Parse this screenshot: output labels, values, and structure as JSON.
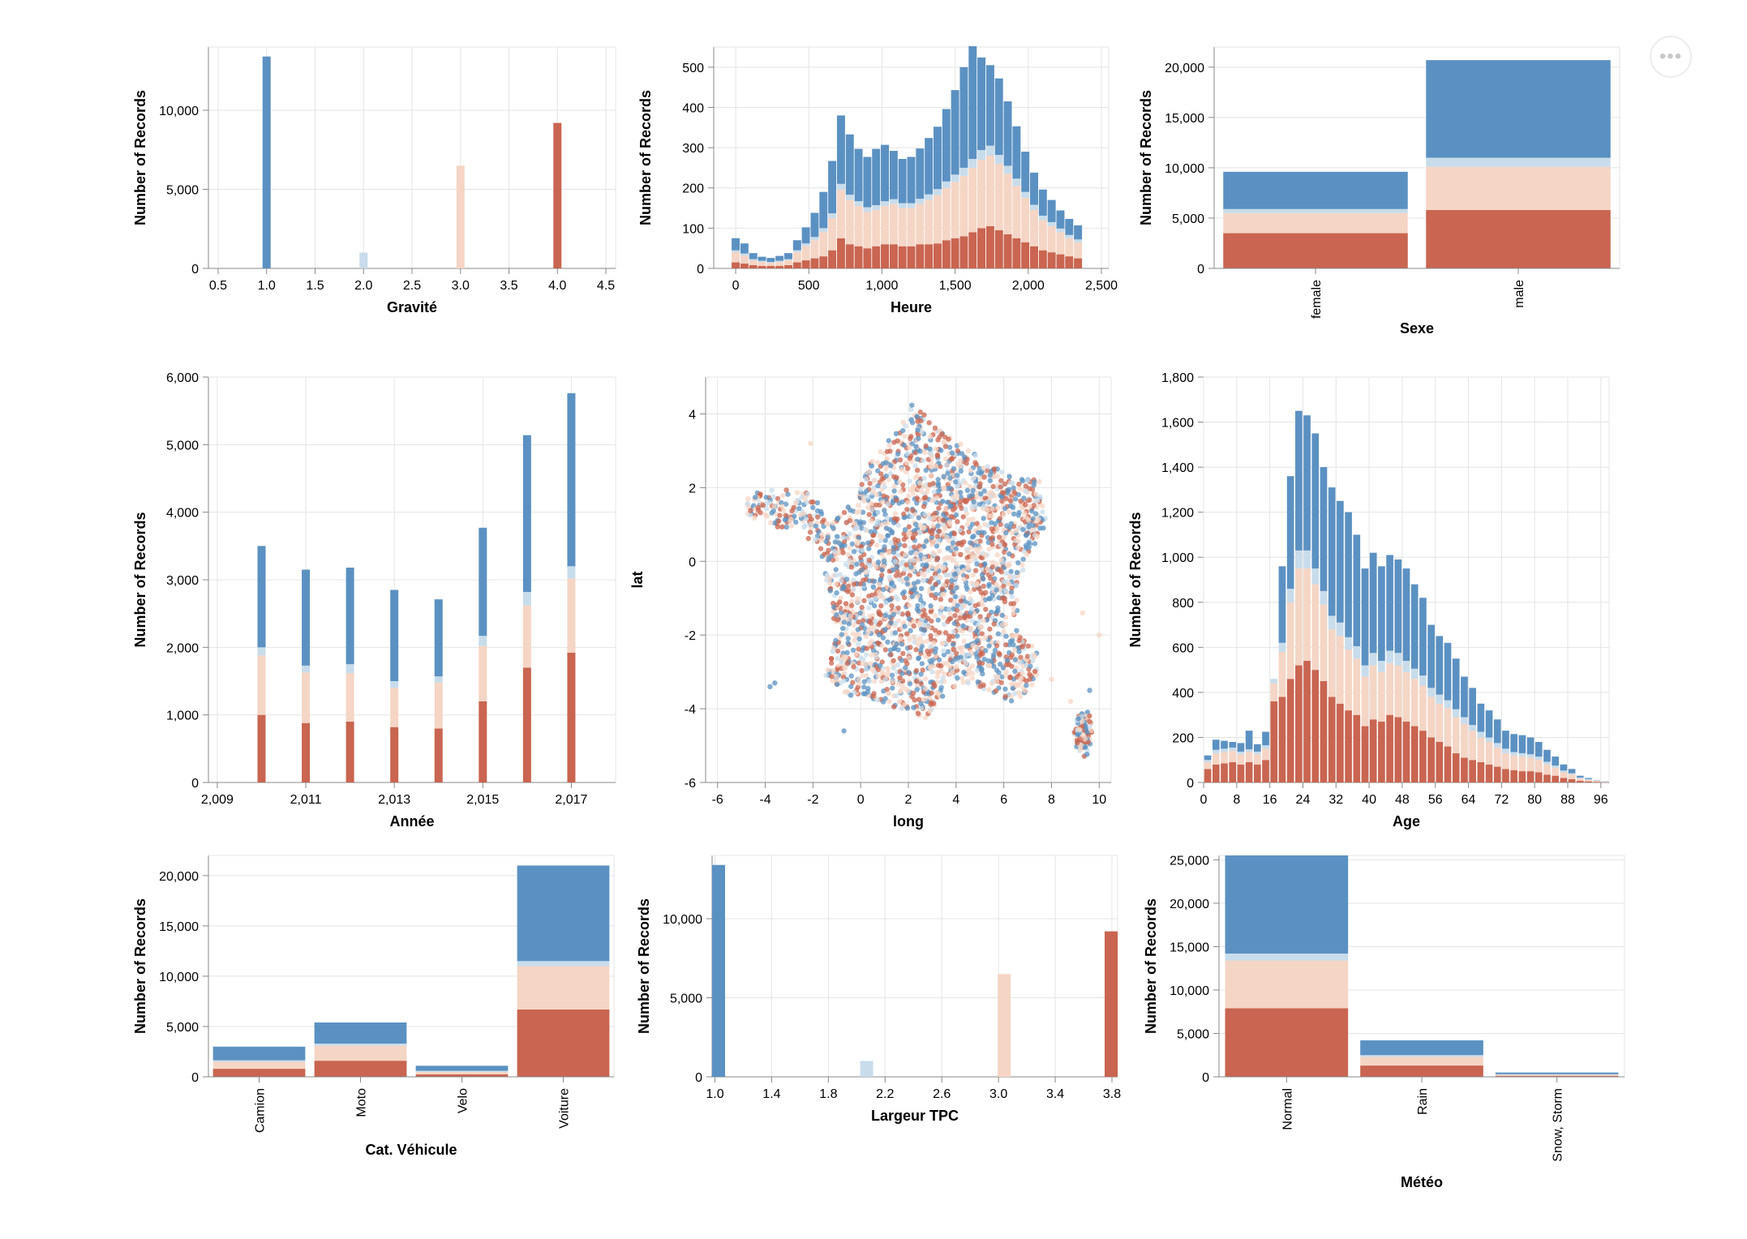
{
  "more_menu_label": "•••",
  "colors": {
    "g1": "#5b91c2",
    "g2": "#c8dceb",
    "g3": "#f5d5c5",
    "g4": "#c96550",
    "grid": "#e4e4e4",
    "axis": "#888888"
  },
  "chart_data": [
    {
      "id": "gravite",
      "type": "bar",
      "xlabel": "Gravité",
      "ylabel": "Number of Records",
      "xlim": [
        0.4,
        4.6
      ],
      "ylim": [
        0,
        14000
      ],
      "xticks": [
        "0.5",
        "1.0",
        "1.5",
        "2.0",
        "2.5",
        "3.0",
        "3.5",
        "4.0",
        "4.5"
      ],
      "yticks": [
        "0",
        "5,000",
        "10,000"
      ],
      "bars": [
        {
          "x": 1,
          "value": 13400,
          "group": 1
        },
        {
          "x": 2,
          "value": 1000,
          "group": 2
        },
        {
          "x": 3,
          "value": 6500,
          "group": 3
        },
        {
          "x": 4,
          "value": 9200,
          "group": 4
        }
      ]
    },
    {
      "id": "heure",
      "type": "bar",
      "stacked": true,
      "xlabel": "Heure",
      "ylabel": "Number of Records",
      "xlim": [
        -150,
        2550
      ],
      "ylim": [
        0,
        550
      ],
      "xticks": [
        "0",
        "500",
        "1,000",
        "1,500",
        "2,000",
        "2,500"
      ],
      "yticks": [
        "0",
        "100",
        "200",
        "300",
        "400",
        "500"
      ],
      "x": [
        0,
        60,
        120,
        180,
        240,
        300,
        360,
        420,
        480,
        540,
        600,
        660,
        720,
        780,
        840,
        900,
        960,
        1020,
        1080,
        1140,
        1200,
        1260,
        1320,
        1380,
        1440,
        1500,
        1560,
        1620,
        1680,
        1740,
        1800,
        1860,
        1920,
        1980,
        2040,
        2100,
        2160,
        2220,
        2280,
        2340
      ],
      "series": [
        {
          "group": 4,
          "values": [
            15,
            12,
            8,
            6,
            6,
            6,
            8,
            15,
            20,
            25,
            30,
            45,
            75,
            60,
            55,
            50,
            55,
            60,
            60,
            55,
            55,
            60,
            60,
            62,
            70,
            75,
            80,
            90,
            100,
            105,
            95,
            85,
            75,
            65,
            55,
            45,
            40,
            35,
            30,
            25
          ]
        },
        {
          "group": 3,
          "values": [
            25,
            20,
            12,
            10,
            8,
            10,
            12,
            25,
            35,
            45,
            60,
            80,
            120,
            110,
            100,
            90,
            90,
            95,
            100,
            95,
            95,
            100,
            110,
            120,
            130,
            140,
            150,
            160,
            170,
            175,
            165,
            150,
            130,
            110,
            90,
            75,
            65,
            55,
            45,
            40
          ]
        },
        {
          "group": 2,
          "values": [
            5,
            5,
            3,
            3,
            2,
            3,
            3,
            5,
            7,
            8,
            10,
            12,
            15,
            13,
            12,
            12,
            12,
            12,
            12,
            12,
            12,
            13,
            14,
            15,
            16,
            18,
            20,
            22,
            24,
            25,
            22,
            20,
            18,
            15,
            13,
            11,
            10,
            9,
            8,
            7
          ]
        },
        {
          "group": 1,
          "values": [
            30,
            25,
            15,
            10,
            10,
            12,
            15,
            25,
            40,
            60,
            90,
            130,
            170,
            150,
            130,
            125,
            140,
            140,
            120,
            110,
            115,
            125,
            140,
            155,
            180,
            210,
            250,
            280,
            230,
            200,
            190,
            160,
            130,
            100,
            80,
            65,
            55,
            45,
            40,
            35
          ]
        }
      ]
    },
    {
      "id": "sexe",
      "type": "bar",
      "stacked": true,
      "xlabel": "Sexe",
      "ylabel": "Number of Records",
      "ylim": [
        0,
        22000
      ],
      "categories": [
        "female",
        "male"
      ],
      "yticks": [
        "0",
        "5,000",
        "10,000",
        "15,000",
        "20,000"
      ],
      "series": [
        {
          "group": 4,
          "values": [
            3500,
            5800
          ]
        },
        {
          "group": 3,
          "values": [
            2000,
            4300
          ]
        },
        {
          "group": 2,
          "values": [
            400,
            900
          ]
        },
        {
          "group": 1,
          "values": [
            3700,
            9700
          ]
        }
      ]
    },
    {
      "id": "annee",
      "type": "bar",
      "stacked": true,
      "xlabel": "Année",
      "ylabel": "Number of Records",
      "xlim": [
        2008.8,
        2018.0
      ],
      "ylim": [
        0,
        6000
      ],
      "xticks": [
        "2,009",
        "2,011",
        "2,013",
        "2,015",
        "2,017"
      ],
      "yticks": [
        "0",
        "1,000",
        "2,000",
        "3,000",
        "4,000",
        "5,000",
        "6,000"
      ],
      "x": [
        2010,
        2011,
        2012,
        2013,
        2014,
        2015,
        2016,
        2017
      ],
      "series": [
        {
          "group": 4,
          "values": [
            1000,
            880,
            900,
            820,
            800,
            1200,
            1700,
            1920
          ]
        },
        {
          "group": 3,
          "values": [
            880,
            750,
            720,
            580,
            680,
            820,
            920,
            1100
          ]
        },
        {
          "group": 2,
          "values": [
            120,
            100,
            130,
            100,
            90,
            150,
            200,
            180
          ]
        },
        {
          "group": 1,
          "values": [
            1500,
            1420,
            1430,
            1350,
            1140,
            1600,
            2320,
            2560
          ]
        }
      ]
    },
    {
      "id": "map",
      "type": "scatter",
      "xlabel": "long",
      "ylabel": "lat",
      "xlim": [
        -6.5,
        10.5
      ],
      "ylim": [
        -6,
        5
      ],
      "xticks": [
        "-6",
        "-4",
        "-2",
        "0",
        "2",
        "4",
        "6",
        "8",
        "10"
      ],
      "yticks": [
        "-6",
        "-4",
        "-2",
        "0",
        "2",
        "4"
      ],
      "outline": [
        [
          -4.8,
          1.8
        ],
        [
          -3.2,
          2.0
        ],
        [
          -1.8,
          1.8
        ],
        [
          -1.5,
          1.0
        ],
        [
          -0.3,
          1.6
        ],
        [
          0.5,
          2.8
        ],
        [
          1.5,
          3.5
        ],
        [
          2.2,
          4.3
        ],
        [
          3.2,
          3.6
        ],
        [
          4.2,
          3.2
        ],
        [
          5.2,
          2.7
        ],
        [
          6.3,
          2.3
        ],
        [
          7.5,
          2.2
        ],
        [
          7.8,
          1.0
        ],
        [
          7.0,
          0.1
        ],
        [
          6.5,
          -0.8
        ],
        [
          6.8,
          -1.8
        ],
        [
          7.5,
          -2.6
        ],
        [
          7.3,
          -3.5
        ],
        [
          6.3,
          -3.8
        ],
        [
          5.3,
          -3.5
        ],
        [
          4.3,
          -3.3
        ],
        [
          3.2,
          -3.8
        ],
        [
          2.8,
          -4.3
        ],
        [
          1.2,
          -3.9
        ],
        [
          0.0,
          -3.7
        ],
        [
          -1.1,
          -3.6
        ],
        [
          -1.5,
          -3.2
        ],
        [
          -1.0,
          -2.0
        ],
        [
          -1.3,
          -1.0
        ],
        [
          -1.7,
          0.3
        ],
        [
          -2.5,
          0.8
        ],
        [
          -4.0,
          1.0
        ],
        [
          -4.8,
          1.3
        ]
      ],
      "corsica": [
        [
          9.2,
          -4.1
        ],
        [
          9.6,
          -4.0
        ],
        [
          9.7,
          -4.7
        ],
        [
          9.5,
          -5.4
        ],
        [
          9.1,
          -5.2
        ],
        [
          8.9,
          -4.5
        ]
      ],
      "outliers": [
        [
          -3.8,
          -3.4
        ],
        [
          -3.6,
          -3.3
        ],
        [
          -0.7,
          -4.6
        ],
        [
          9.3,
          -1.4
        ],
        [
          10.0,
          -2.0
        ],
        [
          9.6,
          -3.5
        ],
        [
          8.8,
          -3.8
        ],
        [
          8.0,
          -3.2
        ],
        [
          -2.1,
          3.2
        ],
        [
          -1.8,
          1.2
        ]
      ]
    },
    {
      "id": "age",
      "type": "bar",
      "stacked": true,
      "xlabel": "Age",
      "ylabel": "Number of Records",
      "xlim": [
        0,
        98
      ],
      "ylim": [
        0,
        1800
      ],
      "xticks": [
        "0",
        "8",
        "16",
        "24",
        "32",
        "40",
        "48",
        "56",
        "64",
        "72",
        "80",
        "88",
        "96"
      ],
      "yticks": [
        "0",
        "200",
        "400",
        "600",
        "800",
        "1,000",
        "1,200",
        "1,400",
        "1,600",
        "1,800"
      ],
      "x": [
        0,
        2,
        4,
        6,
        8,
        10,
        12,
        14,
        16,
        18,
        20,
        22,
        24,
        26,
        28,
        30,
        32,
        34,
        36,
        38,
        40,
        42,
        44,
        46,
        48,
        50,
        52,
        54,
        56,
        58,
        60,
        62,
        64,
        66,
        68,
        70,
        72,
        74,
        76,
        78,
        80,
        82,
        84,
        86,
        88,
        90,
        92,
        94,
        96
      ],
      "totals": [
        120,
        190,
        185,
        180,
        175,
        230,
        170,
        225,
        460,
        960,
        1360,
        1650,
        1630,
        1550,
        1400,
        1310,
        1250,
        1200,
        1100,
        950,
        1020,
        960,
        1010,
        990,
        950,
        880,
        820,
        700,
        650,
        620,
        550,
        470,
        420,
        350,
        320,
        280,
        230,
        215,
        210,
        200,
        180,
        145,
        115,
        80,
        60,
        30,
        20,
        10,
        5
      ],
      "reds": [
        60,
        80,
        85,
        90,
        80,
        90,
        80,
        100,
        360,
        380,
        460,
        520,
        540,
        500,
        450,
        380,
        350,
        320,
        300,
        250,
        280,
        270,
        300,
        290,
        270,
        250,
        230,
        200,
        180,
        160,
        130,
        110,
        100,
        90,
        80,
        70,
        60,
        55,
        50,
        50,
        45,
        35,
        30,
        20,
        15,
        8,
        5,
        3,
        1
      ],
      "pinks": [
        30,
        50,
        50,
        50,
        45,
        45,
        45,
        50,
        80,
        200,
        340,
        430,
        410,
        380,
        340,
        300,
        300,
        270,
        250,
        220,
        240,
        220,
        230,
        230,
        220,
        210,
        200,
        180,
        170,
        170,
        160,
        150,
        130,
        110,
        100,
        85,
        70,
        65,
        65,
        60,
        55,
        45,
        35,
        25,
        20,
        10,
        7,
        4,
        2
      ],
      "blues_light": [
        10,
        15,
        15,
        15,
        12,
        12,
        12,
        15,
        20,
        40,
        60,
        80,
        80,
        70,
        60,
        60,
        60,
        55,
        55,
        50,
        55,
        50,
        55,
        55,
        50,
        45,
        45,
        40,
        40,
        35,
        35,
        30,
        25,
        25,
        20,
        20,
        20,
        15,
        15,
        15,
        15,
        12,
        10,
        8,
        6,
        4,
        3,
        2,
        1
      ]
    },
    {
      "id": "cat_vehicule",
      "type": "bar",
      "stacked": true,
      "xlabel": "Cat. Véhicule",
      "ylabel": "Number of Records",
      "ylim": [
        0,
        22000
      ],
      "categories": [
        "Camion",
        "Moto",
        "Velo",
        "Voiture"
      ],
      "yticks": [
        "0",
        "5,000",
        "10,000",
        "15,000",
        "20,000"
      ],
      "series": [
        {
          "group": 4,
          "values": [
            800,
            1600,
            250,
            6700
          ]
        },
        {
          "group": 3,
          "values": [
            700,
            1500,
            250,
            4300
          ]
        },
        {
          "group": 2,
          "values": [
            150,
            200,
            100,
            500
          ]
        },
        {
          "group": 1,
          "values": [
            1350,
            2100,
            500,
            9500
          ]
        }
      ]
    },
    {
      "id": "largeur_tpc",
      "type": "bar",
      "xlabel": "Largeur TPC",
      "ylabel": "Number of Records",
      "xlim": [
        0.98,
        3.84
      ],
      "ylim": [
        0,
        14000
      ],
      "xticks": [
        "1.0",
        "1.4",
        "1.8",
        "2.2",
        "2.6",
        "3.0",
        "3.4",
        "3.8"
      ],
      "yticks": [
        "0",
        "5,000",
        "10,000"
      ],
      "bars": [
        {
          "x": 1.0,
          "value": 13400,
          "group": 1
        },
        {
          "x": 2.07,
          "value": 1000,
          "group": 2
        },
        {
          "x": 3.04,
          "value": 6500,
          "group": 3
        },
        {
          "x": 3.84,
          "value": 9200,
          "group": 4
        }
      ]
    },
    {
      "id": "meteo",
      "type": "bar",
      "stacked": true,
      "xlabel": "Météo",
      "ylabel": "Number of Records",
      "ylim": [
        0,
        25500
      ],
      "categories": [
        "Normal",
        "Rain",
        "Snow, Storm"
      ],
      "yticks": [
        "0",
        "5,000",
        "10,000",
        "15,000",
        "20,000",
        "25,000"
      ],
      "series": [
        {
          "group": 4,
          "values": [
            7900,
            1300,
            120
          ]
        },
        {
          "group": 3,
          "values": [
            5500,
            1000,
            120
          ]
        },
        {
          "group": 2,
          "values": [
            800,
            200,
            60
          ]
        },
        {
          "group": 1,
          "values": [
            11300,
            1700,
            200
          ]
        }
      ]
    }
  ]
}
